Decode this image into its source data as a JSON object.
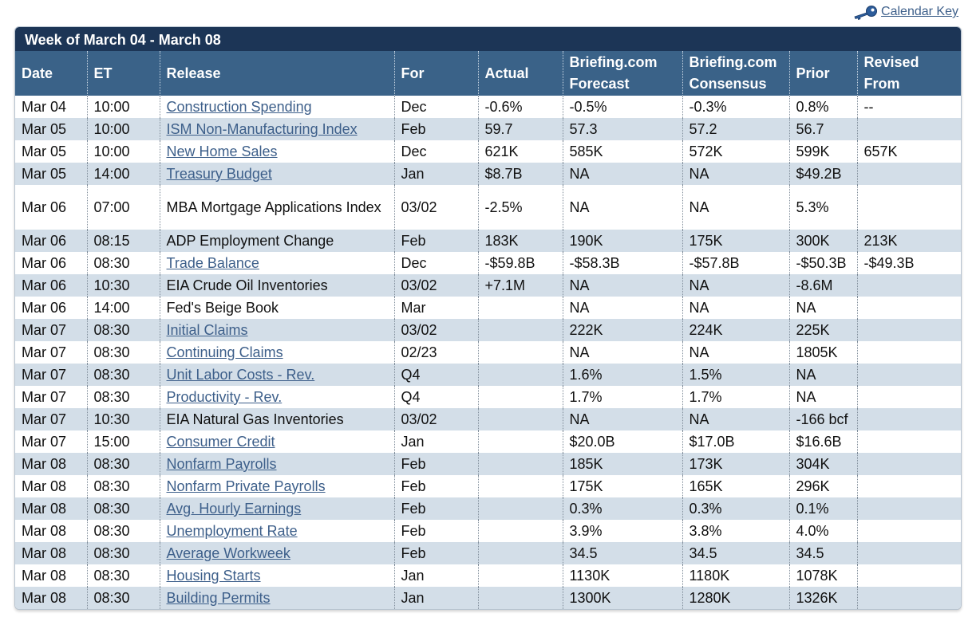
{
  "calendar_key": {
    "label": "Calendar Key",
    "icon": "key-icon"
  },
  "week_title": "Week of March 04 - March 08",
  "columns": {
    "date": "Date",
    "et": "ET",
    "release": "Release",
    "for": "For",
    "actual": "Actual",
    "forecast_1": "Briefing.com",
    "forecast_2": "Forecast",
    "consensus_1": "Briefing.com",
    "consensus_2": "Consensus",
    "prior": "Prior",
    "revised_1": "Revised",
    "revised_2": "From"
  },
  "colors": {
    "title_bar": "#1c3556",
    "header_bar": "#3a6288",
    "row_alt": "#d3dee8",
    "link": "#3d5f8a"
  },
  "rows": [
    {
      "date": "Mar 04",
      "et": "10:00",
      "release": "Construction Spending",
      "link": true,
      "for": "Dec",
      "actual": "-0.6%",
      "forecast": "-0.5%",
      "consensus": "-0.3%",
      "prior": "0.8%",
      "revised": "--"
    },
    {
      "date": "Mar 05",
      "et": "10:00",
      "release": "ISM Non-Manufacturing Index",
      "link": true,
      "for": "Feb",
      "actual": "59.7",
      "forecast": "57.3",
      "consensus": "57.2",
      "prior": "56.7",
      "revised": ""
    },
    {
      "date": "Mar 05",
      "et": "10:00",
      "release": "New Home Sales",
      "link": true,
      "for": "Dec",
      "actual": "621K",
      "forecast": "585K",
      "consensus": "572K",
      "prior": "599K",
      "revised": "657K"
    },
    {
      "date": "Mar 05",
      "et": "14:00",
      "release": "Treasury Budget",
      "link": true,
      "for": "Jan",
      "actual": "$8.7B",
      "forecast": "NA",
      "consensus": "NA",
      "prior": "$49.2B",
      "revised": ""
    },
    {
      "date": "Mar 06",
      "et": "07:00",
      "release": "MBA Mortgage Applications Index",
      "link": false,
      "tall": true,
      "for": "03/02",
      "actual": "-2.5%",
      "forecast": "NA",
      "consensus": "NA",
      "prior": "5.3%",
      "revised": ""
    },
    {
      "date": "Mar 06",
      "et": "08:15",
      "release": "ADP Employment Change",
      "link": false,
      "for": "Feb",
      "actual": "183K",
      "forecast": "190K",
      "consensus": "175K",
      "prior": "300K",
      "revised": "213K"
    },
    {
      "date": "Mar 06",
      "et": "08:30",
      "release": "Trade Balance",
      "link": true,
      "for": "Dec",
      "actual": "-$59.8B",
      "forecast": "-$58.3B",
      "consensus": "-$57.8B",
      "prior": "-$50.3B",
      "revised": "-$49.3B"
    },
    {
      "date": "Mar 06",
      "et": "10:30",
      "release": "EIA Crude Oil Inventories",
      "link": false,
      "for": "03/02",
      "actual": "+7.1M",
      "forecast": "NA",
      "consensus": "NA",
      "prior": "-8.6M",
      "revised": ""
    },
    {
      "date": "Mar 06",
      "et": "14:00",
      "release": "Fed's Beige Book",
      "link": false,
      "for": "Mar",
      "actual": "",
      "forecast": "NA",
      "consensus": "NA",
      "prior": "NA",
      "revised": ""
    },
    {
      "date": "Mar 07",
      "et": "08:30",
      "release": "Initial Claims",
      "link": true,
      "for": "03/02",
      "actual": "",
      "forecast": "222K",
      "consensus": "224K",
      "prior": "225K",
      "revised": ""
    },
    {
      "date": "Mar 07",
      "et": "08:30",
      "release": "Continuing Claims",
      "link": true,
      "for": "02/23",
      "actual": "",
      "forecast": "NA",
      "consensus": "NA",
      "prior": "1805K",
      "revised": ""
    },
    {
      "date": "Mar 07",
      "et": "08:30",
      "release": "Unit Labor Costs - Rev.",
      "link": true,
      "for": "Q4",
      "actual": "",
      "forecast": "1.6%",
      "consensus": "1.5%",
      "prior": "NA",
      "revised": ""
    },
    {
      "date": "Mar 07",
      "et": "08:30",
      "release": "Productivity - Rev.",
      "link": true,
      "for": "Q4",
      "actual": "",
      "forecast": "1.7%",
      "consensus": "1.7%",
      "prior": "NA",
      "revised": ""
    },
    {
      "date": "Mar 07",
      "et": "10:30",
      "release": "EIA Natural Gas Inventories",
      "link": false,
      "for": "03/02",
      "actual": "",
      "forecast": "NA",
      "consensus": "NA",
      "prior": "-166 bcf",
      "revised": ""
    },
    {
      "date": "Mar 07",
      "et": "15:00",
      "release": "Consumer Credit",
      "link": true,
      "for": "Jan",
      "actual": "",
      "forecast": "$20.0B",
      "consensus": "$17.0B",
      "prior": "$16.6B",
      "revised": ""
    },
    {
      "date": "Mar 08",
      "et": "08:30",
      "release": "Nonfarm Payrolls",
      "link": true,
      "for": "Feb",
      "actual": "",
      "forecast": "185K",
      "consensus": "173K",
      "prior": "304K",
      "revised": ""
    },
    {
      "date": "Mar 08",
      "et": "08:30",
      "release": "Nonfarm Private Payrolls",
      "link": true,
      "for": "Feb",
      "actual": "",
      "forecast": "175K",
      "consensus": "165K",
      "prior": "296K",
      "revised": ""
    },
    {
      "date": "Mar 08",
      "et": "08:30",
      "release": "Avg. Hourly Earnings",
      "link": true,
      "for": "Feb",
      "actual": "",
      "forecast": "0.3%",
      "consensus": "0.3%",
      "prior": "0.1%",
      "revised": ""
    },
    {
      "date": "Mar 08",
      "et": "08:30",
      "release": "Unemployment Rate",
      "link": true,
      "for": "Feb",
      "actual": "",
      "forecast": "3.9%",
      "consensus": "3.8%",
      "prior": "4.0%",
      "revised": ""
    },
    {
      "date": "Mar 08",
      "et": "08:30",
      "release": "Average Workweek",
      "link": true,
      "for": "Feb",
      "actual": "",
      "forecast": "34.5",
      "consensus": "34.5",
      "prior": "34.5",
      "revised": ""
    },
    {
      "date": "Mar 08",
      "et": "08:30",
      "release": "Housing Starts",
      "link": true,
      "for": "Jan",
      "actual": "",
      "forecast": "1130K",
      "consensus": "1180K",
      "prior": "1078K",
      "revised": ""
    },
    {
      "date": "Mar 08",
      "et": "08:30",
      "release": "Building Permits",
      "link": true,
      "for": "Jan",
      "actual": "",
      "forecast": "1300K",
      "consensus": "1280K",
      "prior": "1326K",
      "revised": ""
    }
  ]
}
